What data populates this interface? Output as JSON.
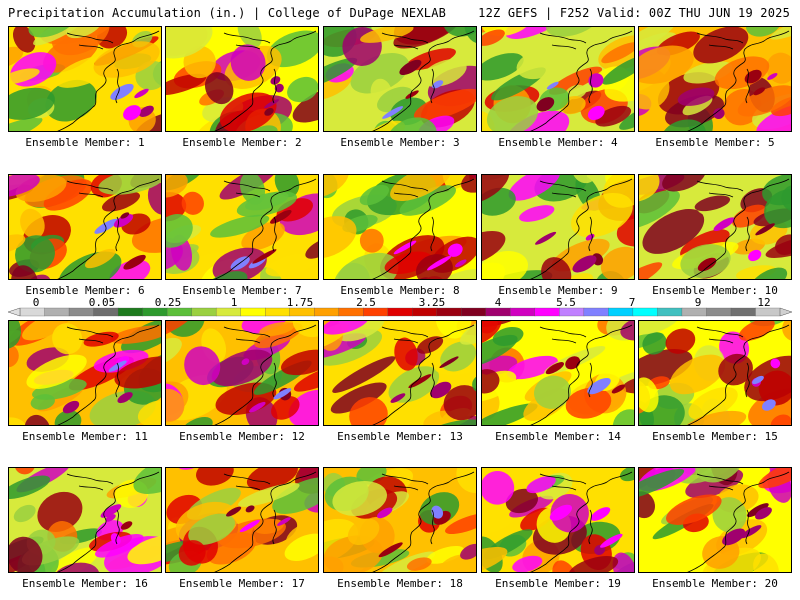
{
  "header": {
    "left_title": "Precipitation Accumulation (in.) | College of DuPage NEXLAB",
    "right_title": "12Z GEFS | F252 Valid: 00Z THU JUN 19 2025"
  },
  "legend": {
    "ticks": [
      "0",
      "0.05",
      "0.25",
      "1",
      "1.75",
      "2.5",
      "3.25",
      "4",
      "5.5",
      "7",
      "9",
      "12"
    ],
    "colors": [
      "#d9d9d9",
      "#b0b0b0",
      "#8c8c8c",
      "#6e6e6e",
      "#1e7b1e",
      "#2e9a2e",
      "#5cbf3a",
      "#9ad040",
      "#d7ea3c",
      "#ffff00",
      "#ffe000",
      "#ffc000",
      "#ffa000",
      "#ff7000",
      "#ff4000",
      "#e00000",
      "#c00000",
      "#9a0010",
      "#800020",
      "#a0006e",
      "#d000c0",
      "#ff00ff",
      "#c080ff",
      "#8080ff",
      "#00d0ff",
      "#00ffff",
      "#40c0c0",
      "#b0b0b0",
      "#8c8c8c",
      "#707070",
      "#c8c8c8"
    ]
  },
  "panels": [
    {
      "label": "Ensemble Member: 1"
    },
    {
      "label": "Ensemble Member: 2"
    },
    {
      "label": "Ensemble Member: 3"
    },
    {
      "label": "Ensemble Member: 4"
    },
    {
      "label": "Ensemble Member: 5"
    },
    {
      "label": "Ensemble Member: 6"
    },
    {
      "label": "Ensemble Member: 7"
    },
    {
      "label": "Ensemble Member: 8"
    },
    {
      "label": "Ensemble Member: 9"
    },
    {
      "label": "Ensemble Member: 10"
    },
    {
      "label": "Ensemble Member: 11"
    },
    {
      "label": "Ensemble Member: 12"
    },
    {
      "label": "Ensemble Member: 13"
    },
    {
      "label": "Ensemble Member: 14"
    },
    {
      "label": "Ensemble Member: 15"
    },
    {
      "label": "Ensemble Member: 16"
    },
    {
      "label": "Ensemble Member: 17"
    },
    {
      "label": "Ensemble Member: 18"
    },
    {
      "label": "Ensemble Member: 19"
    },
    {
      "label": "Ensemble Member: 20"
    }
  ]
}
